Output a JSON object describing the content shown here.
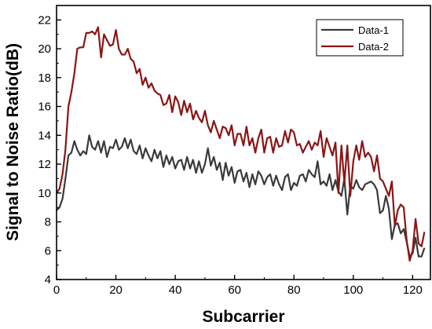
{
  "chart_data": {
    "type": "line",
    "title": "",
    "xlabel": "Subcarrier",
    "ylabel": "Signal to Noise Ratio(dB)",
    "xlim": [
      0,
      126
    ],
    "ylim": [
      4,
      23
    ],
    "x_ticks": [
      0,
      20,
      40,
      60,
      80,
      100,
      120
    ],
    "y_ticks": [
      4,
      6,
      8,
      10,
      12,
      14,
      16,
      18,
      20,
      22
    ],
    "grid": false,
    "legend_position": "top-right",
    "series": [
      {
        "name": "Data-1",
        "color": "#3a3a3a",
        "x": [
          0,
          1,
          2,
          3,
          4,
          5,
          6,
          7,
          8,
          9,
          10,
          11,
          12,
          13,
          14,
          15,
          16,
          17,
          18,
          19,
          20,
          21,
          22,
          23,
          24,
          25,
          26,
          27,
          28,
          29,
          30,
          31,
          32,
          33,
          34,
          35,
          36,
          37,
          38,
          39,
          40,
          41,
          42,
          43,
          44,
          45,
          46,
          47,
          48,
          49,
          50,
          51,
          52,
          53,
          54,
          55,
          56,
          57,
          58,
          59,
          60,
          61,
          62,
          63,
          64,
          65,
          66,
          67,
          68,
          69,
          70,
          71,
          72,
          73,
          74,
          75,
          76,
          77,
          78,
          79,
          80,
          81,
          82,
          83,
          84,
          85,
          86,
          87,
          88,
          89,
          90,
          91,
          92,
          93,
          94,
          95,
          96,
          97,
          98,
          99,
          100,
          101,
          102,
          103,
          104,
          105,
          106,
          107,
          108,
          109,
          110,
          111,
          112,
          113,
          114,
          115,
          116,
          117,
          118,
          119,
          120,
          121,
          122,
          123,
          124
        ],
        "values": [
          8.8,
          9,
          9.6,
          11,
          12.6,
          12.8,
          13.6,
          13,
          12.6,
          12.9,
          12.7,
          14,
          13.2,
          13,
          13.6,
          12.8,
          13.6,
          12.5,
          13.2,
          13.1,
          13.7,
          13,
          13.2,
          13.8,
          13.1,
          13.7,
          12.9,
          12.7,
          13.3,
          12.4,
          13.1,
          12.6,
          12.2,
          13,
          12.4,
          12.9,
          11.8,
          12.6,
          12,
          12.5,
          11.7,
          12.2,
          12.3,
          11.6,
          12.5,
          11.7,
          12.3,
          11.4,
          12.2,
          11.4,
          12,
          13.1,
          11.9,
          12.5,
          11.6,
          12.1,
          10.9,
          12.1,
          11.2,
          11.8,
          10.7,
          11.5,
          11.6,
          10.8,
          11.4,
          10.4,
          11.3,
          10.6,
          11.5,
          11.2,
          10.6,
          11.1,
          11.3,
          10.5,
          11.2,
          10.6,
          10.2,
          11.1,
          11.3,
          10.2,
          10.7,
          10.5,
          11.2,
          11.3,
          10.8,
          11.6,
          11.3,
          11.1,
          12.2,
          10.6,
          10.8,
          10.5,
          11.3,
          10.2,
          10.9,
          10.1,
          9.8,
          11,
          8.5,
          10.5,
          10.3,
          10.9,
          10.4,
          10.2,
          10.6,
          10.7,
          10.8,
          10.6,
          10.2,
          8.6,
          8.8,
          9.8,
          8.9,
          6.8,
          7.8,
          7.9,
          7.2,
          7.5,
          6.6,
          5.6,
          5.8,
          6.9,
          5.6,
          5.6,
          6.2
        ]
      },
      {
        "name": "Data-2",
        "color": "#8b1414",
        "x": [
          0,
          1,
          2,
          3,
          4,
          5,
          6,
          7,
          8,
          9,
          10,
          11,
          12,
          13,
          14,
          15,
          16,
          17,
          18,
          19,
          20,
          21,
          22,
          23,
          24,
          25,
          26,
          27,
          28,
          29,
          30,
          31,
          32,
          33,
          34,
          35,
          36,
          37,
          38,
          39,
          40,
          41,
          42,
          43,
          44,
          45,
          46,
          47,
          48,
          49,
          50,
          51,
          52,
          53,
          54,
          55,
          56,
          57,
          58,
          59,
          60,
          61,
          62,
          63,
          64,
          65,
          66,
          67,
          68,
          69,
          70,
          71,
          72,
          73,
          74,
          75,
          76,
          77,
          78,
          79,
          80,
          81,
          82,
          83,
          84,
          85,
          86,
          87,
          88,
          89,
          90,
          91,
          92,
          93,
          94,
          95,
          96,
          97,
          98,
          99,
          100,
          101,
          102,
          103,
          104,
          105,
          106,
          107,
          108,
          109,
          110,
          111,
          112,
          113,
          114,
          115,
          116,
          117,
          118,
          119,
          120,
          121,
          122,
          123,
          124
        ],
        "values": [
          10,
          10.3,
          11.3,
          13,
          16,
          17,
          18.3,
          20,
          20.1,
          20.1,
          21.1,
          21.1,
          21.2,
          21,
          21.5,
          19.4,
          21,
          20.6,
          20.2,
          20.3,
          21.3,
          20,
          19.6,
          19.6,
          20,
          19.3,
          19.1,
          18.3,
          18.6,
          17.5,
          18,
          17.3,
          17.6,
          17.1,
          16.9,
          16.8,
          16.1,
          16.2,
          16.8,
          15.6,
          16.7,
          16.3,
          15.4,
          16.4,
          15.6,
          16.2,
          15.1,
          15.7,
          15.2,
          14.9,
          15.7,
          14.7,
          14.2,
          15,
          14.4,
          13.8,
          14.6,
          14.5,
          14,
          14.7,
          13.3,
          14.1,
          14.1,
          13.3,
          14.6,
          13.3,
          13.8,
          12.8,
          13.8,
          14.4,
          12.8,
          13.8,
          13.9,
          12.8,
          13.8,
          13.2,
          13.3,
          14.3,
          13.5,
          14.4,
          14.2,
          13.3,
          13.4,
          12.8,
          13.2,
          13.6,
          13,
          13.5,
          13.3,
          14.3,
          12.5,
          13.8,
          13.2,
          12.6,
          13.5,
          10,
          13.3,
          10.7,
          13.3,
          9.8,
          12.2,
          13.3,
          12.3,
          13.6,
          12.5,
          12.8,
          12.5,
          11.5,
          12.6,
          11,
          10.8,
          10.3,
          9.8,
          10.8,
          7.7,
          8.8,
          9.2,
          9,
          6.7,
          5.3,
          6,
          8.2,
          6.5,
          6.3,
          7.3
        ]
      }
    ]
  }
}
